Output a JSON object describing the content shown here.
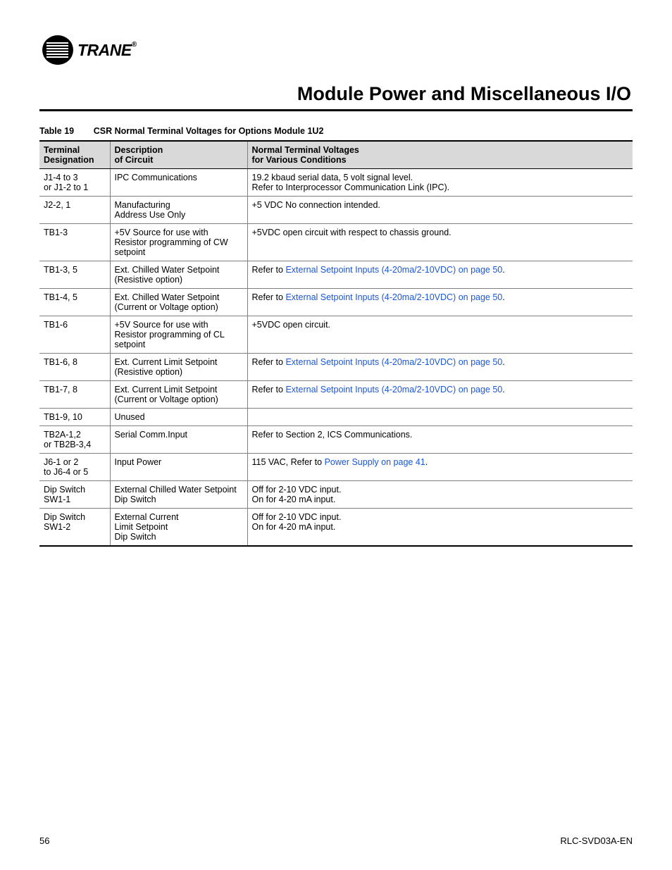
{
  "brand": "TRANE",
  "page_title": "Module Power and Miscellaneous I/O",
  "table": {
    "label": "Table 19",
    "title": "CSR Normal Terminal Voltages for Options Module 1U2",
    "columns": [
      "Terminal\nDesignation",
      "Description\nof Circuit",
      "Normal Terminal Voltages\nfor Various Conditions"
    ],
    "link_text": "External Setpoint Inputs (4-20ma/2-10VDC) on page 50",
    "power_link_text": "Power Supply on page 41",
    "rows": [
      {
        "c0": "J1-4 to 3\nor J1-2 to 1",
        "c1": "IPC Communications",
        "c2_pre": "19.2 kbaud serial data, 5 volt signal level.\nRefer to Interprocessor Communication Link (IPC).",
        "c2_link": null,
        "c2_post": ""
      },
      {
        "c0": "J2-2, 1",
        "c1": "Manufacturing\nAddress Use Only",
        "c2_pre": "+5 VDC No connection intended.",
        "c2_link": null,
        "c2_post": ""
      },
      {
        "c0": "TB1-3",
        "c1": "+5V Source for use with Resistor programming of CW setpoint",
        "c2_pre": "+5VDC open circuit with respect to chassis ground.",
        "c2_link": null,
        "c2_post": ""
      },
      {
        "c0": "TB1-3, 5",
        "c1": "Ext. Chilled Water Setpoint (Resistive option)",
        "c2_pre": "Refer to ",
        "c2_link": "setpoint",
        "c2_post": "."
      },
      {
        "c0": "TB1-4, 5",
        "c1": "Ext. Chilled Water Setpoint (Current or Voltage option)",
        "c2_pre": "Refer to ",
        "c2_link": "setpoint",
        "c2_post": "."
      },
      {
        "c0": "TB1-6",
        "c1": "+5V Source for use with Resistor programming of CL setpoint",
        "c2_pre": "+5VDC open circuit.",
        "c2_link": null,
        "c2_post": ""
      },
      {
        "c0": "TB1-6, 8",
        "c1": "Ext. Current Limit Setpoint (Resistive option)",
        "c2_pre": "Refer to ",
        "c2_link": "setpoint",
        "c2_post": "."
      },
      {
        "c0": "TB1-7, 8",
        "c1": "Ext. Current Limit Setpoint (Current or Voltage option)",
        "c2_pre": "Refer to ",
        "c2_link": "setpoint",
        "c2_post": "."
      },
      {
        "c0": "TB1-9, 10",
        "c1": "Unused",
        "c2_pre": "",
        "c2_link": null,
        "c2_post": ""
      },
      {
        "c0": "TB2A-1,2\nor TB2B-3,4",
        "c1": "Serial Comm.Input",
        "c2_pre": "Refer to Section 2, ICS Communications.",
        "c2_link": null,
        "c2_post": ""
      },
      {
        "c0": "J6-1 or 2\nto J6-4 or 5",
        "c1": "Input Power",
        "c2_pre": "115 VAC, Refer to ",
        "c2_link": "power",
        "c2_post": "."
      },
      {
        "c0": "Dip Switch SW1-1",
        "c1": "External Chilled Water Setpoint Dip Switch",
        "c2_pre": "Off for 2-10 VDC input.\nOn for 4-20 mA input.",
        "c2_link": null,
        "c2_post": ""
      },
      {
        "c0": "Dip Switch SW1-2",
        "c1": "External Current\nLimit Setpoint\nDip Switch",
        "c2_pre": "Off for 2-10 VDC input.\nOn for 4-20 mA input.",
        "c2_link": null,
        "c2_post": ""
      }
    ]
  },
  "footer": {
    "page_num": "56",
    "doc_id": "RLC-SVD03A-EN"
  }
}
